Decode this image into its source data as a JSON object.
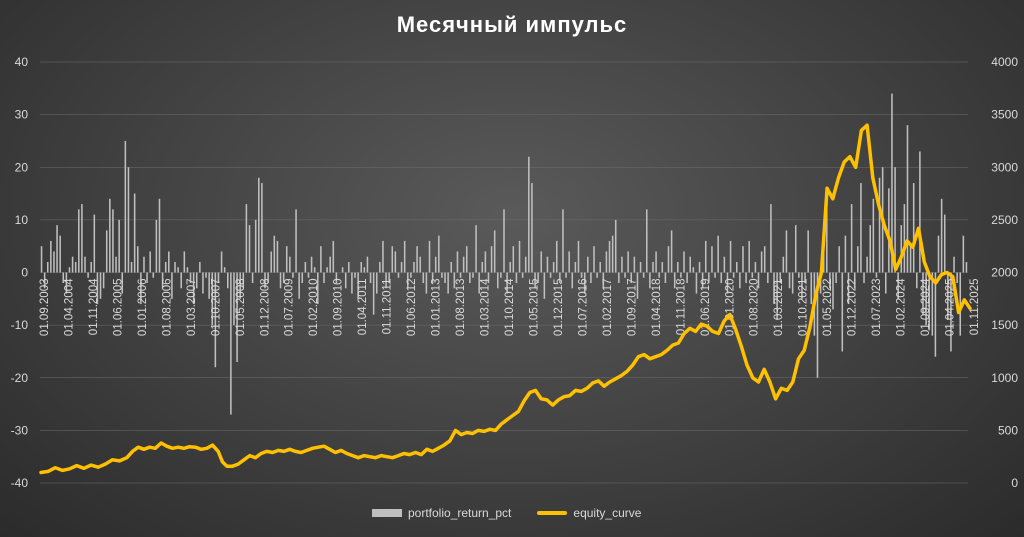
{
  "title": "Месячный импульс",
  "chart_data": {
    "type": "bar+line",
    "x_tick_labels": [
      "01.09.2003",
      "01.04.2004",
      "01.11.2004",
      "01.06.2005",
      "01.01.2006",
      "01.08.2006",
      "01.03.2007",
      "01.10.2007",
      "01.05.2008",
      "01.12.2008",
      "01.07.2009",
      "01.02.2010",
      "01.09.2010",
      "01.04.2011",
      "01.11.2011",
      "01.06.2012",
      "01.01.2013",
      "01.08.2013",
      "01.03.2014",
      "01.10.2014",
      "01.05.2015",
      "01.12.2015",
      "01.07.2016",
      "01.02.2017",
      "01.09.2017",
      "01.04.2018",
      "01.11.2018",
      "01.06.2019",
      "01.01.2020",
      "01.08.2020",
      "01.03.2021",
      "01.10.2021",
      "01.05.2022",
      "01.12.2022",
      "01.07.2023",
      "01.02.2024",
      "01.09.2024",
      "01.04.2025",
      "01.11.2025"
    ],
    "left_axis": {
      "min": -40,
      "max": 40,
      "ticks": [
        -40,
        -30,
        -20,
        -10,
        0,
        10,
        20,
        30,
        40
      ]
    },
    "right_axis": {
      "min": 0,
      "max": 4000,
      "ticks": [
        0,
        500,
        1000,
        1500,
        2000,
        2500,
        3000,
        3500,
        4000
      ]
    },
    "grid": true,
    "legend_position": "bottom",
    "series": [
      {
        "name": "portfolio_return_pct",
        "type": "bar",
        "axis": "left",
        "color": "#bfbfbf",
        "values": [
          5,
          -3,
          2,
          6,
          4,
          9,
          7,
          -2,
          -4,
          1,
          3,
          2,
          12,
          13,
          3,
          -1,
          2,
          11,
          -6,
          -5,
          -3,
          8,
          14,
          12,
          3,
          10,
          -4,
          25,
          20,
          2,
          15,
          5,
          -6,
          3,
          -2,
          4,
          -1,
          10,
          14,
          -3,
          2,
          4,
          -5,
          2,
          1,
          -3,
          4,
          1,
          -2,
          -6,
          -3,
          2,
          -4,
          -1,
          -5,
          -10,
          -18,
          -2,
          4,
          1,
          -3,
          -27,
          -10,
          -17,
          -5,
          -3,
          13,
          9,
          -2,
          10,
          18,
          17,
          -3,
          -2,
          4,
          7,
          6,
          -3,
          -2,
          5,
          3,
          -1,
          12,
          -5,
          -2,
          2,
          -1,
          3,
          1,
          -6,
          5,
          -2,
          1,
          3,
          6,
          -2,
          0,
          1,
          -3,
          2,
          -4,
          -1,
          -5,
          2,
          1,
          3,
          -2,
          -8,
          -4,
          2,
          6,
          -3,
          -2,
          5,
          4,
          -1,
          2,
          6,
          -3,
          -1,
          2,
          5,
          3,
          -2,
          -4,
          6,
          -2,
          3,
          7,
          -1,
          -2,
          -4,
          2,
          -3,
          4,
          -1,
          3,
          5,
          -2,
          -1,
          9,
          -4,
          2,
          4,
          -2,
          5,
          8,
          -3,
          -1,
          12,
          -4,
          2,
          5,
          -2,
          6,
          -1,
          3,
          22,
          17,
          -3,
          -2,
          4,
          -5,
          3,
          -1,
          2,
          6,
          -2,
          12,
          -1,
          4,
          -3,
          2,
          6,
          -1,
          -4,
          3,
          -2,
          5,
          -1,
          2,
          -3,
          4,
          6,
          7,
          10,
          -2,
          3,
          -1,
          4,
          -2,
          3,
          -5,
          2,
          -1,
          12,
          -3,
          2,
          4,
          -1,
          2,
          -2,
          5,
          8,
          -3,
          2,
          -1,
          4,
          -2,
          3,
          1,
          -4,
          2,
          -3,
          6,
          -2,
          5,
          -1,
          7,
          -2,
          3,
          -4,
          6,
          -1,
          2,
          -3,
          5,
          -2,
          6,
          -1,
          2,
          -3,
          4,
          5,
          -2,
          13,
          -6,
          -9,
          -2,
          3,
          8,
          -3,
          -4,
          9,
          -1,
          -5,
          -2,
          8,
          -6,
          -12,
          -20,
          -4,
          6,
          15,
          -3,
          -7,
          -2,
          5,
          -15,
          7,
          -6,
          13,
          -3,
          5,
          17,
          -2,
          3,
          9,
          14,
          -1,
          18,
          20,
          -4,
          16,
          34,
          20,
          -5,
          9,
          13,
          28,
          5,
          17,
          -3,
          23,
          -8,
          -10,
          -11,
          -12,
          -16,
          7,
          14,
          11,
          -9,
          -15,
          3,
          -2,
          -12,
          7,
          2
        ],
        "note": ""
      },
      {
        "name": "equity_curve",
        "type": "line",
        "axis": "right",
        "color": "#ffc000",
        "x_start_label": "01.09.2003",
        "points": [
          [
            0,
            100
          ],
          [
            5,
            110
          ],
          [
            10,
            145
          ],
          [
            15,
            120
          ],
          [
            20,
            135
          ],
          [
            25,
            165
          ],
          [
            30,
            140
          ],
          [
            35,
            170
          ],
          [
            40,
            150
          ],
          [
            45,
            180
          ],
          [
            50,
            220
          ],
          [
            55,
            210
          ],
          [
            60,
            240
          ],
          [
            64,
            300
          ],
          [
            68,
            340
          ],
          [
            72,
            320
          ],
          [
            76,
            340
          ],
          [
            80,
            330
          ],
          [
            84,
            380
          ],
          [
            88,
            350
          ],
          [
            92,
            330
          ],
          [
            96,
            340
          ],
          [
            100,
            330
          ],
          [
            104,
            345
          ],
          [
            108,
            340
          ],
          [
            112,
            320
          ],
          [
            116,
            330
          ],
          [
            120,
            360
          ],
          [
            124,
            300
          ],
          [
            127,
            200
          ],
          [
            130,
            160
          ],
          [
            134,
            160
          ],
          [
            138,
            180
          ],
          [
            142,
            220
          ],
          [
            146,
            260
          ],
          [
            150,
            240
          ],
          [
            154,
            280
          ],
          [
            158,
            300
          ],
          [
            162,
            290
          ],
          [
            166,
            310
          ],
          [
            170,
            300
          ],
          [
            174,
            320
          ],
          [
            178,
            300
          ],
          [
            182,
            290
          ],
          [
            186,
            310
          ],
          [
            190,
            330
          ],
          [
            194,
            340
          ],
          [
            198,
            350
          ],
          [
            202,
            320
          ],
          [
            206,
            290
          ],
          [
            210,
            310
          ],
          [
            214,
            280
          ],
          [
            218,
            260
          ],
          [
            222,
            240
          ],
          [
            226,
            260
          ],
          [
            230,
            250
          ],
          [
            234,
            240
          ],
          [
            238,
            260
          ],
          [
            242,
            250
          ],
          [
            246,
            240
          ],
          [
            250,
            260
          ],
          [
            254,
            280
          ],
          [
            258,
            270
          ],
          [
            262,
            290
          ],
          [
            266,
            270
          ],
          [
            270,
            320
          ],
          [
            274,
            300
          ],
          [
            278,
            330
          ],
          [
            282,
            360
          ],
          [
            286,
            400
          ],
          [
            290,
            500
          ],
          [
            294,
            460
          ],
          [
            298,
            480
          ],
          [
            302,
            470
          ],
          [
            306,
            500
          ],
          [
            310,
            490
          ],
          [
            314,
            510
          ],
          [
            318,
            500
          ],
          [
            322,
            560
          ],
          [
            326,
            600
          ],
          [
            330,
            640
          ],
          [
            334,
            680
          ],
          [
            338,
            780
          ],
          [
            342,
            860
          ],
          [
            346,
            880
          ],
          [
            350,
            800
          ],
          [
            354,
            790
          ],
          [
            358,
            740
          ],
          [
            362,
            790
          ],
          [
            366,
            820
          ],
          [
            370,
            830
          ],
          [
            374,
            880
          ],
          [
            378,
            870
          ],
          [
            382,
            900
          ],
          [
            386,
            950
          ],
          [
            390,
            970
          ],
          [
            394,
            920
          ],
          [
            398,
            960
          ],
          [
            402,
            990
          ],
          [
            406,
            1020
          ],
          [
            410,
            1060
          ],
          [
            414,
            1120
          ],
          [
            418,
            1200
          ],
          [
            422,
            1220
          ],
          [
            426,
            1180
          ],
          [
            430,
            1200
          ],
          [
            434,
            1220
          ],
          [
            438,
            1260
          ],
          [
            442,
            1310
          ],
          [
            446,
            1330
          ],
          [
            450,
            1420
          ],
          [
            454,
            1470
          ],
          [
            458,
            1440
          ],
          [
            462,
            1510
          ],
          [
            466,
            1490
          ],
          [
            470,
            1440
          ],
          [
            474,
            1420
          ],
          [
            478,
            1540
          ],
          [
            482,
            1600
          ],
          [
            486,
            1460
          ],
          [
            490,
            1300
          ],
          [
            494,
            1120
          ],
          [
            498,
            1000
          ],
          [
            502,
            960
          ],
          [
            506,
            1080
          ],
          [
            510,
            960
          ],
          [
            514,
            800
          ],
          [
            518,
            900
          ],
          [
            522,
            880
          ],
          [
            526,
            960
          ],
          [
            530,
            1180
          ],
          [
            534,
            1260
          ],
          [
            538,
            1480
          ],
          [
            542,
            1780
          ],
          [
            546,
            2000
          ],
          [
            550,
            2800
          ],
          [
            554,
            2700
          ],
          [
            558,
            2900
          ],
          [
            562,
            3050
          ],
          [
            566,
            3100
          ],
          [
            570,
            3000
          ],
          [
            574,
            3350
          ],
          [
            578,
            3400
          ],
          [
            582,
            2900
          ],
          [
            586,
            2650
          ],
          [
            590,
            2450
          ],
          [
            594,
            2300
          ],
          [
            598,
            2030
          ],
          [
            602,
            2150
          ],
          [
            606,
            2300
          ],
          [
            610,
            2240
          ],
          [
            614,
            2420
          ],
          [
            618,
            2100
          ],
          [
            622,
            1960
          ],
          [
            626,
            1900
          ],
          [
            630,
            1980
          ],
          [
            634,
            2000
          ],
          [
            638,
            1960
          ],
          [
            642,
            1620
          ],
          [
            646,
            1740
          ],
          [
            650,
            1660
          ]
        ]
      }
    ]
  }
}
